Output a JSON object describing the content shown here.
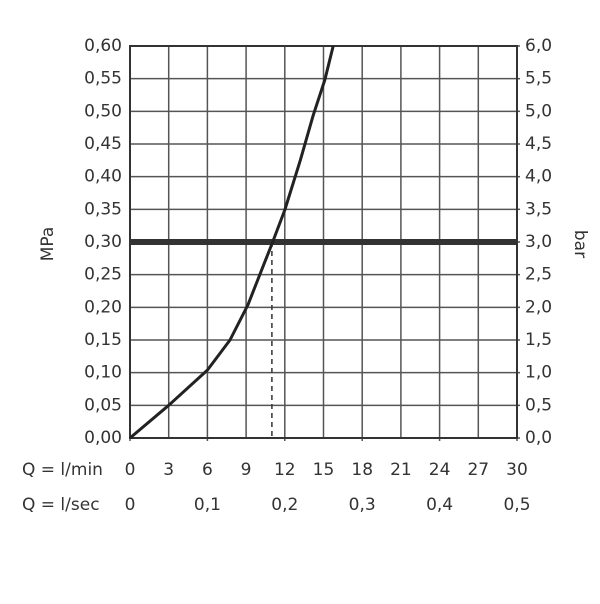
{
  "chart_data": {
    "type": "line",
    "x": [
      0,
      3,
      6,
      7.75,
      9.15,
      10.2,
      11,
      12,
      13.2,
      14.2,
      15.1,
      15.75
    ],
    "values": [
      0,
      0.05,
      0.104,
      0.15,
      0.204,
      0.257,
      0.297,
      0.349,
      0.425,
      0.494,
      0.548,
      0.6
    ],
    "color": "#222222",
    "xlabel": "Q = l/min",
    "x2label": "Q = l/sec",
    "ylabel": "MPa",
    "y2label": "bar",
    "xlim": [
      0,
      30
    ],
    "xticks": [
      0,
      3,
      6,
      9,
      12,
      15,
      18,
      21,
      24,
      27,
      30
    ],
    "x2lim": [
      0,
      0.5
    ],
    "x2ticks": [
      0,
      {
        "value": 0.1,
        "label": "0,1"
      },
      {
        "value": 0.2,
        "label": "0,2"
      },
      {
        "value": 0.3,
        "label": "0,3"
      },
      {
        "value": 0.4,
        "label": "0,4"
      },
      {
        "value": 0.5,
        "label": "0,5"
      }
    ],
    "ylim": [
      0,
      0.6
    ],
    "yticks": [
      {
        "value": 0,
        "label": "0,00"
      },
      {
        "value": 0.05,
        "label": "0,05"
      },
      {
        "value": 0.1,
        "label": "0,10"
      },
      {
        "value": 0.15,
        "label": "0,15"
      },
      {
        "value": 0.2,
        "label": "0,20"
      },
      {
        "value": 0.25,
        "label": "0,25"
      },
      {
        "value": 0.3,
        "label": "0,30"
      },
      {
        "value": 0.35,
        "label": "0,35"
      },
      {
        "value": 0.4,
        "label": "0,40"
      },
      {
        "value": 0.45,
        "label": "0,45"
      },
      {
        "value": 0.5,
        "label": "0,50"
      },
      {
        "value": 0.55,
        "label": "0,55"
      },
      {
        "value": 0.6,
        "label": "0,60"
      }
    ],
    "y2lim": [
      0,
      6
    ],
    "y2ticks": [
      {
        "value": 0,
        "label": "0,0"
      },
      {
        "value": 0.5,
        "label": "0,5"
      },
      {
        "value": 1,
        "label": "1,0"
      },
      {
        "value": 1.5,
        "label": "1,5"
      },
      {
        "value": 2,
        "label": "2,0"
      },
      {
        "value": 2.5,
        "label": "2,5"
      },
      {
        "value": 3,
        "label": "3,0"
      },
      {
        "value": 3.5,
        "label": "3,5"
      },
      {
        "value": 4,
        "label": "4,0"
      },
      {
        "value": 4.5,
        "label": "4,5"
      },
      {
        "value": 5,
        "label": "5,0"
      },
      {
        "value": 5.5,
        "label": "5,5"
      },
      {
        "value": 6,
        "label": "6,0"
      }
    ],
    "hline": 0.3,
    "vline": 11,
    "grid": true
  }
}
